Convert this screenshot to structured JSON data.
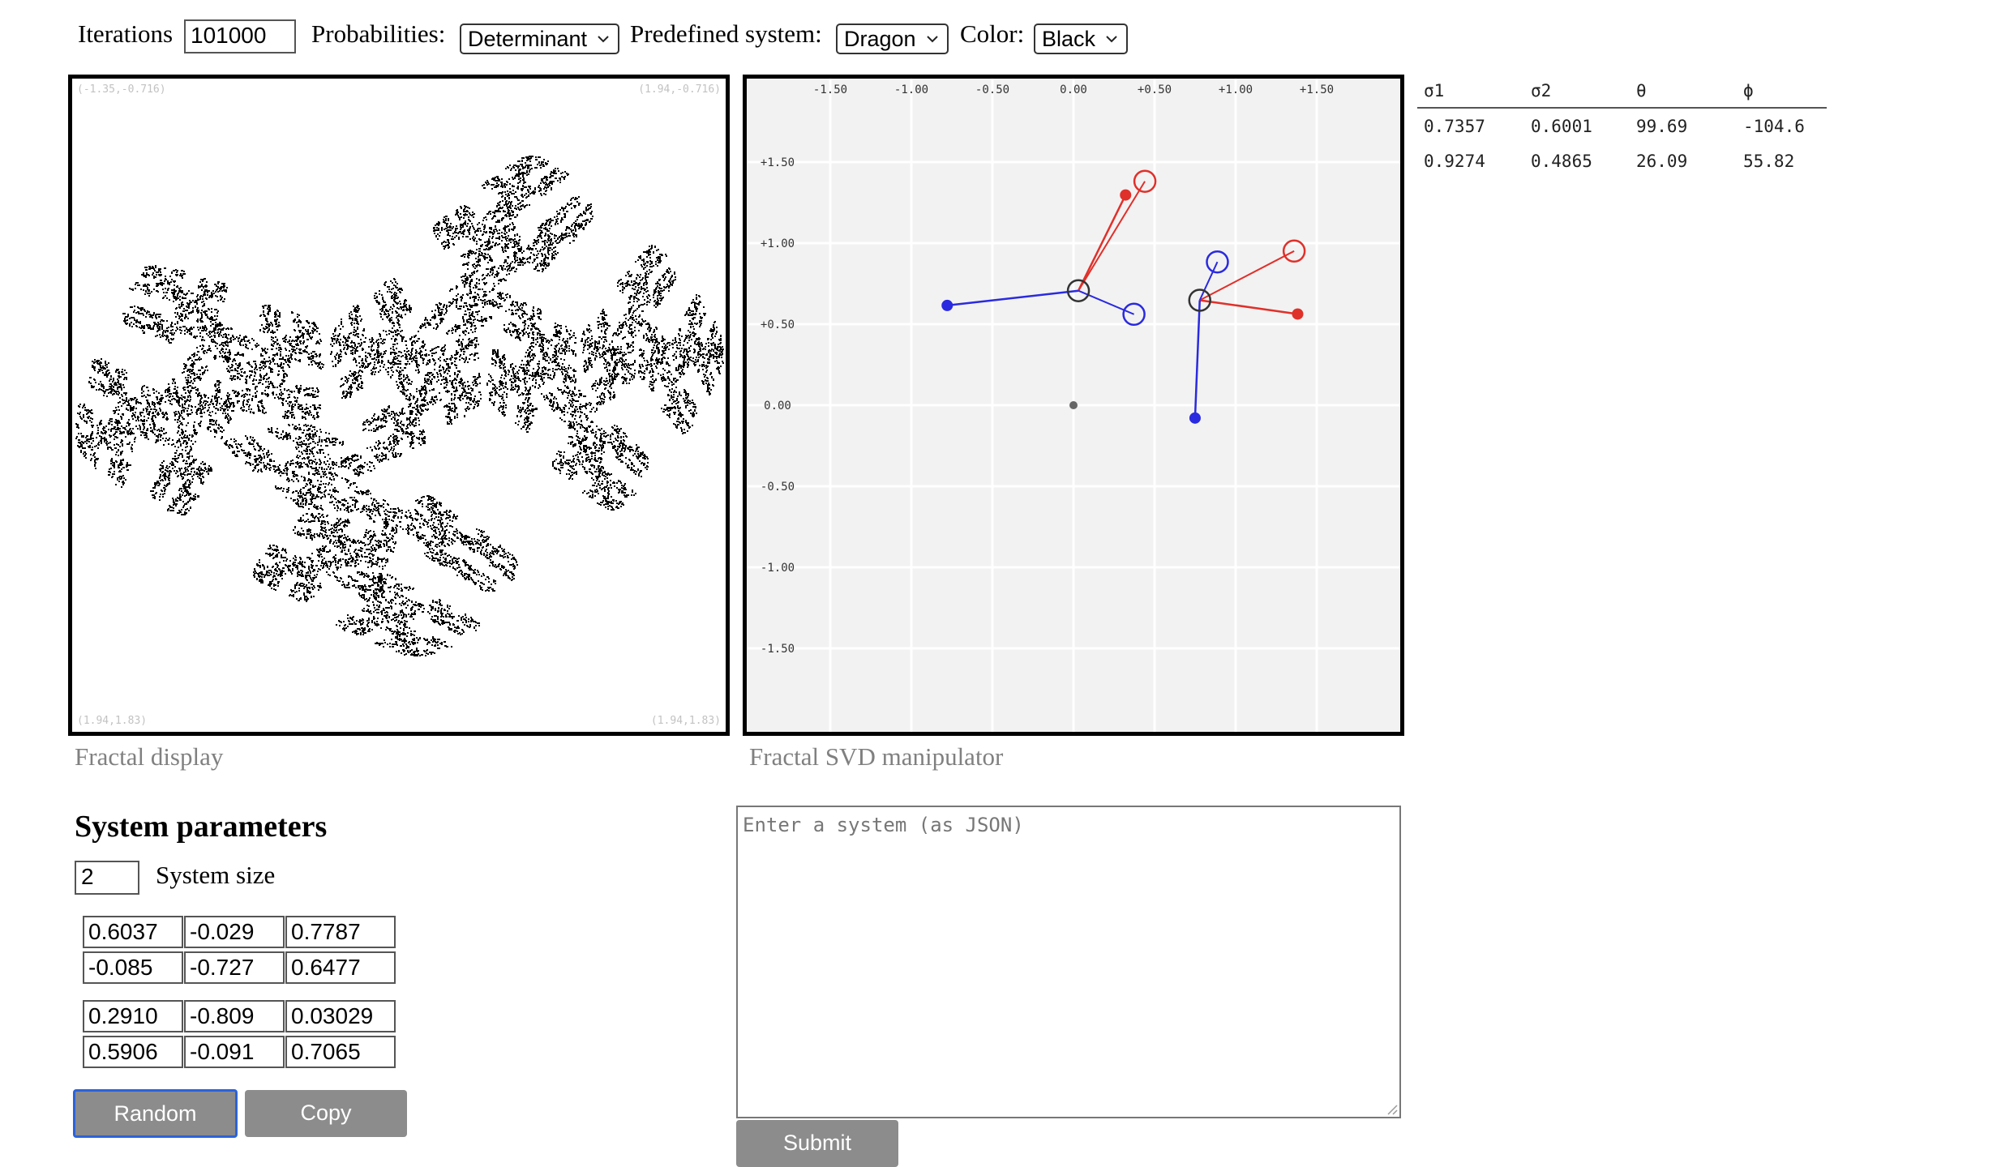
{
  "controls": {
    "iterations_label": "Iterations",
    "iterations_value": "101000",
    "probabilities_label": "Probabilities:",
    "probabilities_value": "Determinant",
    "predefined_label": "Predefined system:",
    "predefined_value": "Dragon",
    "color_label": "Color:",
    "color_value": "Black"
  },
  "fractal_display": {
    "corner_top_left": "(-1.35,-0.716)",
    "corner_top_right": "(1.94,-0.716)",
    "corner_bottom_left": "(1.94,1.83)",
    "corner_bottom_right": "(1.94,1.83)",
    "caption": "Fractal display"
  },
  "svd_manipulator": {
    "caption": "Fractal SVD manipulator",
    "x_ticks": [
      "-1.50",
      "-1.00",
      "-0.50",
      "0.00",
      "+0.50",
      "+1.00",
      "+1.50"
    ],
    "y_ticks": [
      "+1.50",
      "+1.00",
      "+0.50",
      "0.00",
      "-0.50",
      "-1.00",
      "-1.50"
    ],
    "colors": {
      "red": "#e0302a",
      "blue": "#2a2ae0",
      "grid_bg": "#f2f2f2"
    }
  },
  "svd_table": {
    "headers": [
      "σ1",
      "σ2",
      "θ",
      "ϕ"
    ],
    "rows": [
      [
        "0.7357",
        "0.6001",
        "99.69",
        "-104.6"
      ],
      [
        "0.9274",
        "0.4865",
        "26.09",
        "55.82"
      ]
    ]
  },
  "system_parameters": {
    "title": "System parameters",
    "size_value": "2",
    "size_label": "System size",
    "matrices": [
      [
        [
          "0.6037",
          "-0.029",
          "0.7787"
        ],
        [
          "-0.085",
          "-0.727",
          "0.6477"
        ]
      ],
      [
        [
          "0.2910",
          "-0.809",
          "0.03029"
        ],
        [
          "0.5906",
          "-0.091",
          "0.7065"
        ]
      ]
    ],
    "random_label": "Random",
    "copy_label": "Copy"
  },
  "json_entry": {
    "placeholder": "Enter a system (as JSON)",
    "submit_label": "Submit"
  }
}
